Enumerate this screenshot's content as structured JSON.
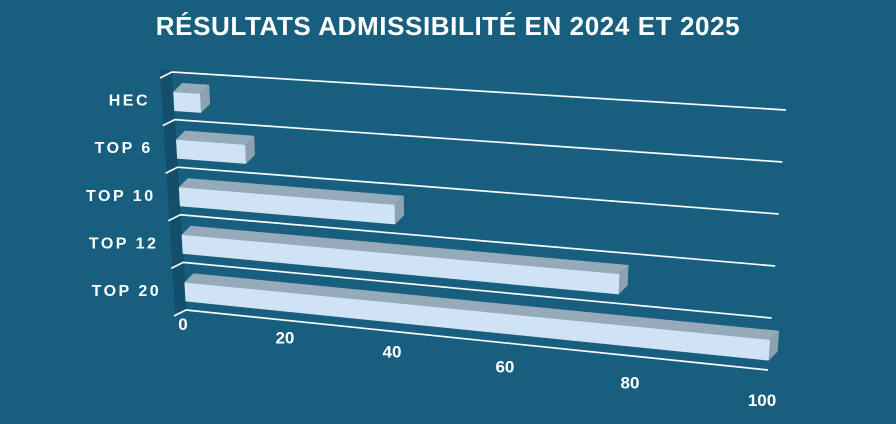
{
  "chart_data": {
    "type": "bar",
    "orientation": "horizontal",
    "projection": "3d",
    "title": "RÉSULTATS ADMISSIBILITÉ EN 2024 ET 2025",
    "categories": [
      "HEC",
      "TOP 6",
      "TOP 10",
      "TOP 12",
      "TOP 20"
    ],
    "values": [
      5,
      13,
      40,
      77,
      100
    ],
    "xticks": [
      0,
      20,
      40,
      60,
      80,
      100
    ],
    "xlim": [
      0,
      100
    ],
    "grid": "on",
    "legend": "none",
    "colors": {
      "background": "#185E7F",
      "bar_front": "#CFE3F5",
      "bar_top": "#96ABBA",
      "bar_side": "#8CA2B1",
      "gridline": "#F7FAFC",
      "wall_shadow": "#134F6B",
      "text": "#FFFFFF"
    }
  }
}
